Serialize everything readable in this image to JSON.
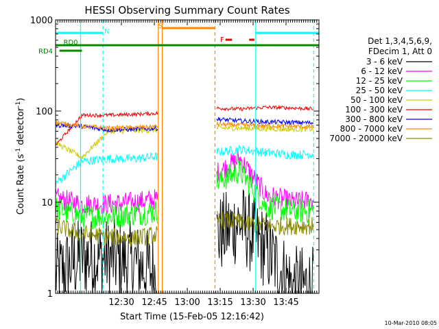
{
  "chart_data": {
    "type": "line",
    "title": "HESSI Observing Summary Count Rates",
    "xlabel": "Start Time (15-Feb-05 12:16:42)",
    "ylabel_main": "Count Rate (s",
    "ylabel_sup1": "-1",
    "ylabel_mid": " detector",
    "ylabel_sup2": "-1",
    "ylabel_end": ")",
    "yscale": "log",
    "ylim": [
      1,
      1000
    ],
    "y_ticks": [
      {
        "value": 1,
        "label": "1"
      },
      {
        "value": 10,
        "label": "10"
      },
      {
        "value": 100,
        "label": "100"
      },
      {
        "value": 1000,
        "label": "1000"
      }
    ],
    "xlim_minutes": [
      12.0,
      14.0
    ],
    "x_ticks": [
      {
        "value": 12.5,
        "label": "12:30"
      },
      {
        "value": 12.75,
        "label": "12:45"
      },
      {
        "value": 13.0,
        "label": "13:00"
      },
      {
        "value": 13.25,
        "label": "13:15"
      },
      {
        "value": 13.5,
        "label": "13:30"
      },
      {
        "value": 13.75,
        "label": "13:45"
      }
    ],
    "legend_header": [
      "Det 1,3,4,5,6,9,",
      "FDecim 1, Att 0"
    ],
    "footer_date": "10-Mar-2010 08:05",
    "gaps": [
      [
        12.78,
        13.22
      ],
      [
        13.96,
        14.0
      ]
    ],
    "series": [
      {
        "name": "3 - 6 keV",
        "color": "#000000",
        "level": [
          1.6,
          2.5,
          2.4,
          2.2,
          1.5,
          4.2,
          4.0,
          6.0,
          3.0,
          1.2,
          1.2
        ],
        "jitter": 0.45
      },
      {
        "name": "6 - 12 keV",
        "color": "#ff00ff",
        "level": [
          11.0,
          9.5,
          9.5,
          10.0,
          11.0,
          14.0,
          20.0,
          30.0,
          12.0,
          10.0,
          10.5
        ],
        "jitter": 0.12
      },
      {
        "name": "12 - 25 keV",
        "color": "#00ff00",
        "level": [
          8.5,
          7.0,
          7.0,
          7.5,
          8.0,
          12.0,
          16.0,
          22.0,
          9.0,
          8.0,
          8.0
        ],
        "jitter": 0.14
      },
      {
        "name": "25 - 50 keV",
        "color": "#00ffff",
        "level": [
          16.0,
          28.0,
          30.0,
          30.0,
          32.0,
          38.0,
          35.0,
          38.0,
          35.0,
          33.0,
          34.0
        ],
        "jitter": 0.05
      },
      {
        "name": "50 - 100 keV",
        "color": "#cccc00",
        "level": [
          45.0,
          31.0,
          60.0,
          61.0,
          62.0,
          70.0,
          65.0,
          65.0,
          64.0,
          63.0,
          64.0
        ],
        "jitter": 0.03
      },
      {
        "name": "100 - 300 keV",
        "color": "#ee0000",
        "level": [
          42.0,
          90.0,
          90.0,
          92.0,
          95.0,
          110.0,
          108.0,
          105.0,
          110.0,
          108.0,
          105.0
        ],
        "jitter": 0.02
      },
      {
        "name": "300 - 800 keV",
        "color": "#0000ee",
        "level": [
          70.0,
          68.0,
          62.0,
          63.0,
          65.0,
          88.0,
          82.0,
          78.0,
          76.0,
          75.0,
          74.0
        ],
        "jitter": 0.025
      },
      {
        "name": "800 - 7000 keV",
        "color": "#ff8800",
        "level": [
          75.0,
          68.0,
          65.0,
          66.0,
          68.0,
          76.0,
          72.0,
          70.0,
          69.0,
          68.0,
          67.0
        ],
        "jitter": 0.025
      },
      {
        "name": "7000 - 20000 keV",
        "color": "#888800",
        "level": [
          5.5,
          4.5,
          4.2,
          4.0,
          4.5,
          6.0,
          6.5,
          6.0,
          5.5,
          5.5,
          5.5
        ],
        "jitter": 0.1
      }
    ],
    "flag_bars": [
      {
        "label": "N",
        "color": "#00ffff",
        "y": 1000,
        "segments": [
          [
            12.0,
            12.36
          ],
          [
            13.52,
            14.0
          ]
        ],
        "label_at": 12.37
      },
      {
        "label": "S",
        "color": "#ff8800",
        "y": 1000,
        "segments": [
          [
            12.81,
            13.21
          ]
        ],
        "label_at": 12.78
      },
      {
        "label": "F",
        "color": "#ee0000",
        "y": 1000,
        "segments": [
          [
            13.29,
            13.34
          ],
          [
            13.47,
            13.51
          ]
        ],
        "label_at": 13.25
      },
      {
        "label": "RD0",
        "color": "#008800",
        "y": 1000,
        "segments": [
          [
            12.0,
            14.0
          ]
        ],
        "label_at": 12.03
      },
      {
        "label": "RD4",
        "color": "#008800",
        "y": 1000,
        "segments": [
          [
            12.03,
            12.2
          ]
        ],
        "label_at": 12.0
      }
    ],
    "vlines": [
      {
        "x": 12.19,
        "color": "#00ffff",
        "style": "solid"
      },
      {
        "x": 12.36,
        "color": "#00ffff",
        "style": "dashed"
      },
      {
        "x": 12.78,
        "color": "#ff8800",
        "style": "solid"
      },
      {
        "x": 12.81,
        "color": "#ff8800",
        "style": "solid"
      },
      {
        "x": 13.21,
        "color": "#ff8800",
        "style": "dashed"
      },
      {
        "x": 13.52,
        "color": "#00ffff",
        "style": "solid"
      },
      {
        "x": 13.96,
        "color": "#00ffff",
        "style": "dashed"
      }
    ]
  }
}
